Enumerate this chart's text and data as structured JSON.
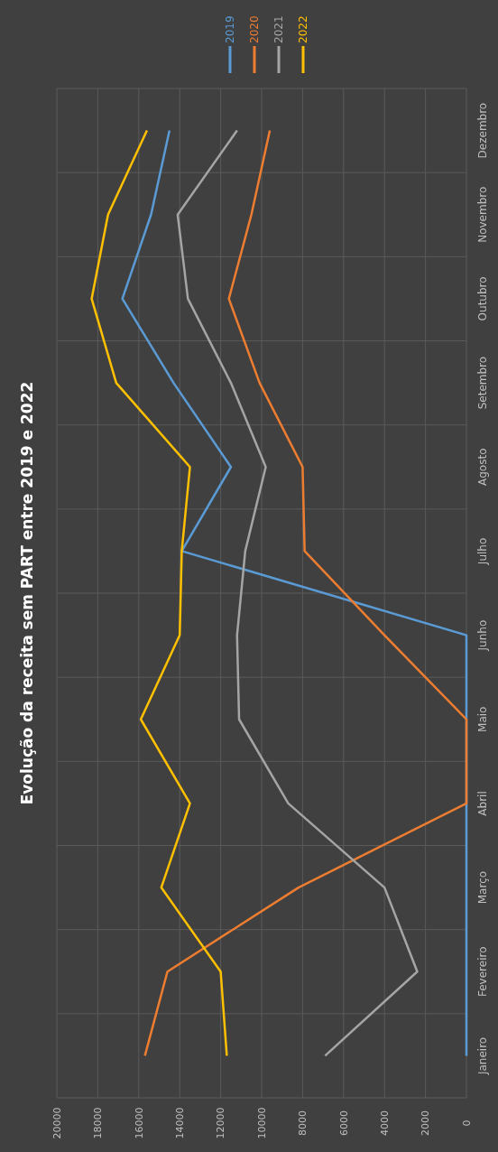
{
  "chart_data": {
    "type": "line",
    "title": "Evolução da receita sem PART entre 2019 e 2022",
    "orientation": "horizontal",
    "categories": [
      "Dezembro",
      "Novembro",
      "Outubro",
      "Setembro",
      "Agosto",
      "Julho",
      "Junho",
      "Maio",
      "Abril",
      "Março",
      "Fevereiro",
      "Janeiro"
    ],
    "series": [
      {
        "name": "2019",
        "color": "#5b9bd5",
        "values": [
          14500,
          15400,
          16800,
          14300,
          11500,
          13900,
          0,
          0,
          0,
          0,
          0,
          0
        ]
      },
      {
        "name": "2020",
        "color": "#ed7d31",
        "values": [
          9600,
          10500,
          11600,
          10100,
          8000,
          7900,
          4000,
          0,
          0,
          8200,
          14600,
          15700
        ]
      },
      {
        "name": "2021",
        "color": "#a5a5a5",
        "values": [
          11200,
          14100,
          13600,
          11500,
          9800,
          10800,
          11200,
          11100,
          8700,
          4000,
          2400,
          6900
        ]
      },
      {
        "name": "2022",
        "color": "#ffc000",
        "values": [
          15600,
          17500,
          18300,
          17100,
          13500,
          13900,
          14000,
          15900,
          13500,
          14900,
          12000,
          11700
        ]
      }
    ],
    "xlim": [
      20000,
      0
    ],
    "xticks": [
      20000,
      18000,
      16000,
      14000,
      12000,
      10000,
      8000,
      6000,
      4000,
      2000,
      0
    ],
    "grid": true,
    "legend": "top right"
  }
}
